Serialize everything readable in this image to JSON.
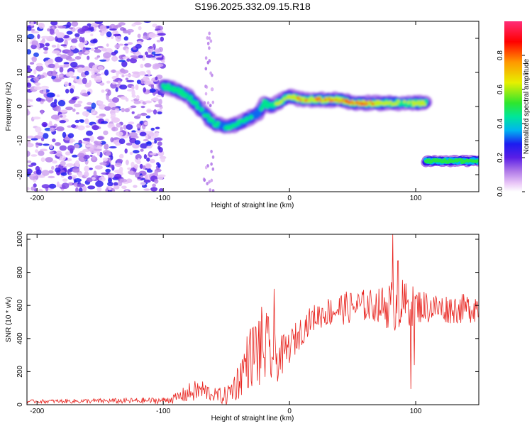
{
  "chart_data": [
    {
      "type": "heatmap",
      "title": "S196.2025.332.09.15.R18",
      "xlabel": "Height of straight line (km)",
      "ylabel": "Frequency (Hz)",
      "xlim": [
        -208,
        150
      ],
      "ylim": [
        -25,
        25
      ],
      "xticks": [
        -200,
        -100,
        0,
        100
      ],
      "yticks": [
        -20,
        -10,
        0,
        10,
        20
      ],
      "colorbar": {
        "label": "Normalized spectral amplitude",
        "range": [
          0,
          1
        ],
        "ticks": [
          "0.0",
          "0.2",
          "0.4",
          "0.6",
          "0.8"
        ],
        "tick_values": [
          0,
          0.2,
          0.4,
          0.6,
          0.8
        ],
        "colors": [
          "#ffffff",
          "#e9c6f7",
          "#b07ae8",
          "#5a1ee6",
          "#1c1cf0",
          "#00b4f0",
          "#00e69a",
          "#2ee62e",
          "#e6f000",
          "#ff9800",
          "#ff0000",
          "#ff2d78"
        ],
        "color_stops": [
          0,
          0.05,
          0.12,
          0.2,
          0.28,
          0.36,
          0.44,
          0.52,
          0.64,
          0.76,
          0.88,
          1.0
        ]
      },
      "noise_region_x": [
        -208,
        -100
      ],
      "ridge": {
        "x": [
          -100,
          -90,
          -80,
          -70,
          -60,
          -50,
          -40,
          -30,
          -25,
          -20,
          -15,
          -10,
          -5,
          0,
          10,
          20,
          30,
          40,
          50,
          60,
          70,
          80,
          90,
          100,
          108
        ],
        "freq": [
          6,
          5,
          3,
          -1,
          -5,
          -6,
          -5,
          -3,
          -2,
          1,
          0,
          1,
          2,
          3,
          2,
          2,
          2,
          2,
          1,
          1,
          1,
          1,
          1,
          1,
          1
        ],
        "amplitude": [
          0.45,
          0.5,
          0.45,
          0.4,
          0.45,
          0.45,
          0.45,
          0.4,
          0.35,
          0.5,
          0.5,
          0.55,
          0.6,
          0.7,
          0.85,
          0.85,
          0.85,
          0.85,
          0.9,
          0.9,
          0.75,
          0.6,
          0.55,
          0.6,
          0.6
        ]
      },
      "second_band": {
        "x_range": [
          108,
          150
        ],
        "freq": -16,
        "amplitude": 0.6
      }
    },
    {
      "type": "line",
      "title": "",
      "xlabel": "Height of straight line (km)",
      "ylabel": "SNR (10 * v/v)",
      "xlim": [
        -208,
        150
      ],
      "ylim": [
        0,
        1030
      ],
      "xticks": [
        -200,
        -100,
        0,
        100
      ],
      "yticks": [
        0,
        200,
        400,
        600,
        800,
        1000
      ],
      "color": "#e8231e",
      "envelope": {
        "x": [
          -208,
          -150,
          -100,
          -90,
          -80,
          -70,
          -60,
          -50,
          -40,
          -35,
          -30,
          -25,
          -20,
          -15,
          -10,
          -5,
          0,
          5,
          10,
          15,
          20,
          30,
          40,
          50,
          60,
          70,
          80,
          90,
          100,
          110,
          120,
          130,
          140,
          150
        ],
        "mean": [
          20,
          22,
          25,
          40,
          70,
          90,
          60,
          50,
          150,
          250,
          300,
          330,
          350,
          300,
          280,
          300,
          350,
          400,
          450,
          500,
          530,
          560,
          580,
          590,
          600,
          600,
          600,
          600,
          600,
          590,
          580,
          580,
          580,
          600
        ],
        "amplitude": [
          10,
          15,
          20,
          30,
          60,
          70,
          40,
          60,
          120,
          160,
          200,
          250,
          260,
          200,
          150,
          120,
          100,
          100,
          90,
          80,
          80,
          90,
          100,
          100,
          100,
          100,
          160,
          160,
          110,
          100,
          90,
          90,
          90,
          100
        ]
      },
      "spikes": [
        {
          "x": 82,
          "y": 1030
        },
        {
          "x": 96,
          "y": 95
        },
        {
          "x": 86,
          "y": 870
        },
        {
          "x": 99,
          "y": 240
        },
        {
          "x": -12,
          "y": 700
        }
      ]
    }
  ]
}
